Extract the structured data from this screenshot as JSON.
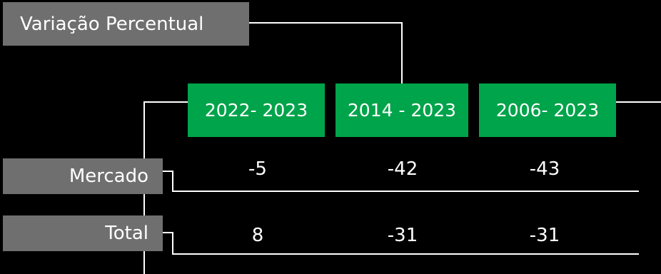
{
  "title": "Variação Percentual",
  "periods": [
    "2022- 2023",
    "2014 - 2023",
    "2006- 2023"
  ],
  "rows": [
    {
      "label": "Mercado",
      "values": [
        "-5",
        "-42",
        "-43"
      ]
    },
    {
      "label": "Total",
      "values": [
        "8",
        "-31",
        "-31"
      ]
    }
  ],
  "colors": {
    "background": "#000000",
    "header_fill": "#00a44a",
    "label_fill": "#6f6f6f",
    "text": "#ffffff",
    "lines": "#ffffff"
  }
}
